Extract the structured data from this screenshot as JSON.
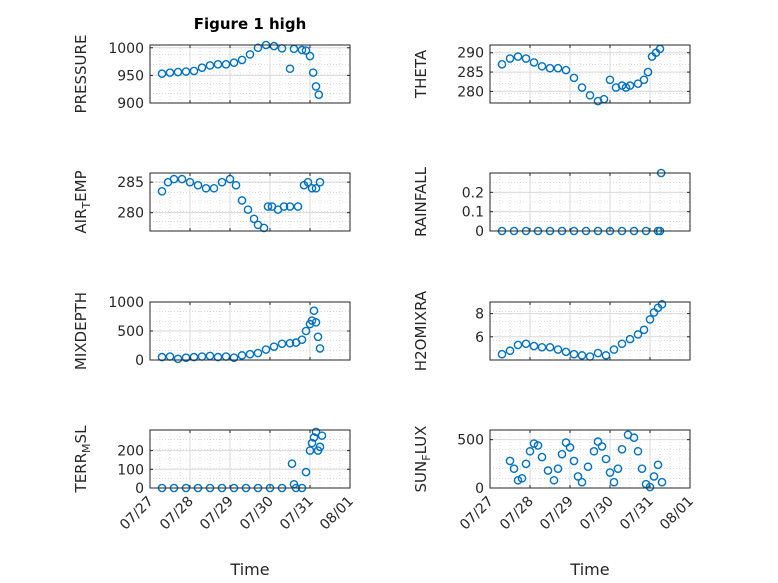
{
  "chart_data": [
    {
      "type": "scatter",
      "title": "Figure 1 high",
      "ylabel": "PRESSURE",
      "xlabel": "",
      "xlim": [
        0,
        5
      ],
      "x_ticks": [
        "07/27",
        "07/28",
        "07/29",
        "07/30",
        "07/31",
        "08/01"
      ],
      "ylim": [
        900,
        1005
      ],
      "y_ticks": [
        "900",
        "950",
        "1000"
      ],
      "y_tick_values": [
        900,
        950,
        1000
      ],
      "grid": true,
      "series": [
        {
          "x": [
            0.3,
            0.5,
            0.7,
            0.9,
            1.1,
            1.3,
            1.5,
            1.7,
            1.9,
            2.1,
            2.3,
            2.5,
            2.7,
            2.9,
            3.1,
            3.3,
            3.5,
            3.6,
            3.8,
            3.9,
            4.0,
            4.08,
            4.15,
            4.22
          ],
          "y": [
            953,
            955,
            956,
            957,
            958,
            964,
            968,
            970,
            970,
            973,
            978,
            988,
            1000,
            1005,
            1003,
            999,
            962,
            998,
            996,
            995,
            985,
            955,
            930,
            915
          ]
        }
      ]
    },
    {
      "type": "scatter",
      "title": "",
      "ylabel": "THETA",
      "xlabel": "",
      "xlim": [
        0,
        5
      ],
      "x_ticks": [
        "07/27",
        "07/28",
        "07/29",
        "07/30",
        "07/31",
        "08/01"
      ],
      "ylim": [
        277,
        292
      ],
      "y_ticks": [
        "280",
        "285",
        "290"
      ],
      "y_tick_values": [
        280,
        285,
        290
      ],
      "grid": true,
      "series": [
        {
          "x": [
            0.3,
            0.5,
            0.7,
            0.9,
            1.1,
            1.3,
            1.5,
            1.7,
            1.9,
            2.1,
            2.3,
            2.5,
            2.7,
            2.85,
            3.0,
            3.15,
            3.3,
            3.4,
            3.5,
            3.7,
            3.85,
            3.95,
            4.05,
            4.15,
            4.25
          ],
          "y": [
            287,
            288.5,
            289,
            288.5,
            287.5,
            286.5,
            286,
            286,
            285.5,
            283.5,
            281,
            279,
            277.5,
            278,
            283,
            281,
            281.5,
            281,
            281.5,
            282,
            283,
            285,
            289,
            290,
            291
          ]
        }
      ]
    },
    {
      "type": "scatter",
      "title": "",
      "ylabel": "AIR_TEMP",
      "xlabel": "",
      "xlim": [
        0,
        5
      ],
      "x_ticks": [
        "07/27",
        "07/28",
        "07/29",
        "07/30",
        "07/31",
        "08/01"
      ],
      "ylim": [
        277,
        286.5
      ],
      "y_ticks": [
        "280",
        "285"
      ],
      "y_tick_values": [
        280,
        285
      ],
      "grid": true,
      "series": [
        {
          "x": [
            0.3,
            0.45,
            0.6,
            0.8,
            1.0,
            1.2,
            1.4,
            1.6,
            1.8,
            2.0,
            2.15,
            2.3,
            2.45,
            2.6,
            2.7,
            2.85,
            2.95,
            3.05,
            3.2,
            3.35,
            3.5,
            3.7,
            3.85,
            3.95,
            4.05,
            4.15,
            4.25
          ],
          "y": [
            283.5,
            285,
            285.5,
            285.5,
            285,
            284.5,
            284,
            284,
            285,
            285.5,
            284.5,
            282,
            280.5,
            279,
            278,
            277.5,
            281,
            281,
            280.5,
            281,
            281,
            281,
            284.5,
            285,
            284,
            284,
            285
          ]
        }
      ]
    },
    {
      "type": "scatter",
      "title": "",
      "ylabel": "RAINFALL",
      "xlabel": "",
      "xlim": [
        0,
        5
      ],
      "x_ticks": [
        "07/27",
        "07/28",
        "07/29",
        "07/30",
        "07/31",
        "08/01"
      ],
      "ylim": [
        0,
        0.3
      ],
      "y_ticks": [
        "0",
        "0.1",
        "0.2"
      ],
      "y_tick_values": [
        0,
        0.1,
        0.2
      ],
      "grid": true,
      "series": [
        {
          "x": [
            0.3,
            0.6,
            0.9,
            1.2,
            1.5,
            1.8,
            2.1,
            2.4,
            2.7,
            3.0,
            3.3,
            3.6,
            3.9,
            4.2,
            4.25,
            4.28
          ],
          "y": [
            0,
            0,
            0,
            0,
            0,
            0,
            0,
            0,
            0,
            0,
            0,
            0,
            0,
            0,
            0,
            0.3
          ]
        }
      ]
    },
    {
      "type": "scatter",
      "title": "",
      "ylabel": "MIXDEPTH",
      "xlabel": "",
      "xlim": [
        0,
        5
      ],
      "x_ticks": [
        "07/27",
        "07/28",
        "07/29",
        "07/30",
        "07/31",
        "08/01"
      ],
      "ylim": [
        0,
        1000
      ],
      "y_ticks": [
        "0",
        "500",
        "1000"
      ],
      "y_tick_values": [
        0,
        500,
        1000
      ],
      "grid": true,
      "series": [
        {
          "x": [
            0.3,
            0.5,
            0.7,
            0.9,
            1.1,
            1.3,
            1.5,
            1.7,
            1.9,
            2.1,
            2.3,
            2.5,
            2.7,
            2.9,
            3.1,
            3.3,
            3.5,
            3.65,
            3.8,
            3.9,
            4.0,
            4.05,
            4.1,
            4.15,
            4.2,
            4.25
          ],
          "y": [
            50,
            60,
            20,
            40,
            50,
            60,
            70,
            50,
            60,
            40,
            80,
            100,
            120,
            180,
            230,
            280,
            290,
            300,
            350,
            500,
            620,
            680,
            850,
            650,
            400,
            200
          ]
        }
      ]
    },
    {
      "type": "scatter",
      "title": "",
      "ylabel": "H2OMIXRA",
      "xlabel": "",
      "xlim": [
        0,
        5
      ],
      "x_ticks": [
        "07/27",
        "07/28",
        "07/29",
        "07/30",
        "07/31",
        "08/01"
      ],
      "ylim": [
        4,
        9
      ],
      "y_ticks": [
        "6",
        "8"
      ],
      "y_tick_values": [
        6,
        8
      ],
      "grid": true,
      "series": [
        {
          "x": [
            0.3,
            0.5,
            0.7,
            0.9,
            1.1,
            1.3,
            1.5,
            1.7,
            1.9,
            2.1,
            2.3,
            2.5,
            2.7,
            2.9,
            3.1,
            3.3,
            3.5,
            3.7,
            3.85,
            4.0,
            4.1,
            4.2,
            4.3
          ],
          "y": [
            4.5,
            4.8,
            5.3,
            5.4,
            5.2,
            5.1,
            5.1,
            4.9,
            4.7,
            4.5,
            4.4,
            4.3,
            4.6,
            4.4,
            4.9,
            5.4,
            5.8,
            6.2,
            6.6,
            7.5,
            8.1,
            8.5,
            8.8
          ]
        }
      ]
    },
    {
      "type": "scatter",
      "title": "",
      "ylabel": "TERR_MSL",
      "xlabel": "Time",
      "xlim": [
        0,
        5
      ],
      "x_ticks": [
        "07/27",
        "07/28",
        "07/29",
        "07/30",
        "07/31",
        "08/01"
      ],
      "ylim": [
        0,
        310
      ],
      "y_ticks": [
        "0",
        "100",
        "200"
      ],
      "y_tick_values": [
        0,
        100,
        200
      ],
      "grid": true,
      "series": [
        {
          "x": [
            0.3,
            0.6,
            0.9,
            1.2,
            1.5,
            1.8,
            2.1,
            2.4,
            2.7,
            3.0,
            3.3,
            3.55,
            3.6,
            3.65,
            3.8,
            3.9,
            4.0,
            4.05,
            4.1,
            4.15,
            4.2,
            4.25,
            4.3
          ],
          "y": [
            0,
            0,
            0,
            0,
            0,
            0,
            0,
            0,
            0,
            0,
            0,
            130,
            20,
            0,
            0,
            85,
            200,
            240,
            270,
            300,
            200,
            220,
            280
          ]
        }
      ]
    },
    {
      "type": "scatter",
      "title": "",
      "ylabel": "SUN_FLUX",
      "xlabel": "Time",
      "xlim": [
        0,
        5
      ],
      "x_ticks": [
        "07/27",
        "07/28",
        "07/29",
        "07/30",
        "07/31",
        "08/01"
      ],
      "ylim": [
        0,
        600
      ],
      "y_ticks": [
        "0",
        "500"
      ],
      "y_tick_values": [
        0,
        500
      ],
      "grid": true,
      "series": [
        {
          "x": [
            0.5,
            0.6,
            0.7,
            0.8,
            0.9,
            1.0,
            1.1,
            1.2,
            1.3,
            1.45,
            1.6,
            1.7,
            1.8,
            1.9,
            2.0,
            2.1,
            2.2,
            2.3,
            2.45,
            2.6,
            2.7,
            2.8,
            2.9,
            3.0,
            3.1,
            3.2,
            3.3,
            3.45,
            3.6,
            3.7,
            3.8,
            3.9,
            4.0,
            4.1,
            4.2,
            4.3
          ],
          "y": [
            280,
            200,
            80,
            100,
            250,
            380,
            460,
            440,
            320,
            180,
            80,
            200,
            350,
            470,
            420,
            280,
            120,
            60,
            220,
            380,
            480,
            430,
            300,
            160,
            60,
            200,
            400,
            550,
            520,
            380,
            200,
            40,
            10,
            120,
            240,
            60
          ]
        }
      ]
    }
  ]
}
